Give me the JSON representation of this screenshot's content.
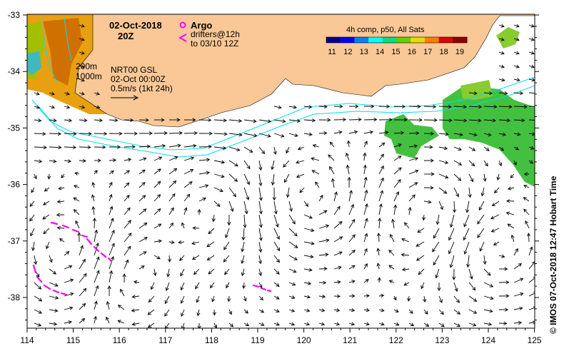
{
  "header": {
    "date": "02-Oct-2018",
    "hour": "20Z",
    "argo_label": "Argo",
    "drifters_line1": "drifters@12h",
    "drifters_line2": "to 03/10 12Z"
  },
  "colorbar": {
    "title": "4h comp, p50, All Sats",
    "labels": [
      "11",
      "12",
      "13",
      "14",
      "15",
      "16",
      "17",
      "18",
      "19"
    ],
    "colors": [
      "#00008f",
      "#0000ff",
      "#0080ff",
      "#00ffff",
      "#00e080",
      "#60d000",
      "#e0e000",
      "#ff8000",
      "#e00000",
      "#8f0000"
    ]
  },
  "legend": {
    "contour_200": "200m",
    "contour_1000": "1000m",
    "product": "NRT00 GSL",
    "analysis_time": "02-Oct 00:00Z",
    "scale_label": "0.5m/s (1kt 24h)"
  },
  "axes": {
    "lon_ticks": [
      "114",
      "115",
      "116",
      "117",
      "118",
      "119",
      "120",
      "121",
      "122",
      "123",
      "124",
      "125"
    ],
    "lat_ticks": [
      "-33",
      "-34",
      "-35",
      "-36",
      "-37",
      "-38"
    ]
  },
  "credit": "© IMOS 07-Oct-2018 12:47 Hobart Time",
  "colors": {
    "land": "#fac896",
    "isobath": "#00e0e8",
    "drifter": "#ff00ff"
  },
  "icons": {
    "argo": "magenta-circle-marker",
    "drifter": "magenta-chevron-marker"
  }
}
